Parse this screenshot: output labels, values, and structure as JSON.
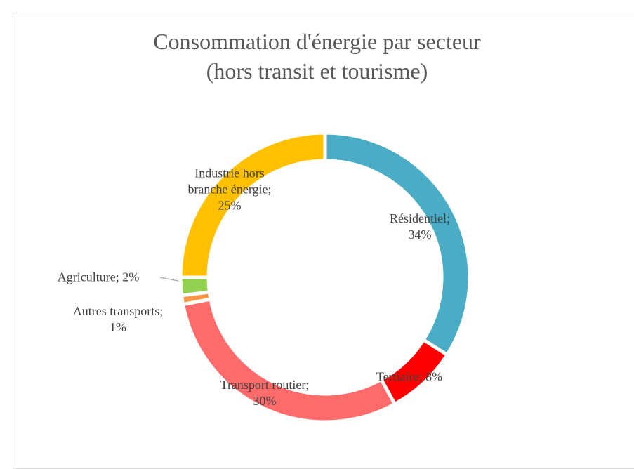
{
  "chart_data": {
    "type": "doughnut",
    "title": [
      "Consommation d'énergie par secteur",
      "(hors transit et tourisme)"
    ],
    "values": [
      34,
      8,
      30,
      1,
      2,
      25
    ],
    "value_labels": [
      "Résidentiel; 34%",
      "Tertiaire; 8%",
      "Transport routier; 30%",
      "Autres transports; 1%",
      "Agriculture; 2%",
      "Industrie hors branche énergie; 25%"
    ],
    "colors": [
      "#4bacc6",
      "#ff0000",
      "#ff6b6b",
      "#f79646",
      "#92d050",
      "#ffc000"
    ]
  }
}
